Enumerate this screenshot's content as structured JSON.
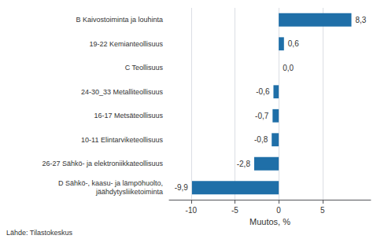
{
  "chart_data": {
    "type": "bar",
    "orientation": "horizontal",
    "categories": [
      "D Sähkö-, kaasu- ja lämpöhuolto,\njäähdytysliiketoiminta",
      "26-27 Sähkö- ja elektroniikkateollisuus",
      "10-11 Elintarviketeollisuus",
      "16-17 Metsäteollisuus",
      "24-30_33 Metalliteollisuus",
      "C Teollisuus",
      "19-22 Kemianteollisuus",
      "B Kaivostoiminta ja louhinta"
    ],
    "values": [
      -9.9,
      -2.8,
      -0.8,
      -0.7,
      -0.6,
      0.0,
      0.6,
      8.3
    ],
    "value_labels": [
      "-9,9",
      "-2,8",
      "-0,8",
      "-0,7",
      "-0,6",
      "0,0",
      "0,6",
      "8,3"
    ],
    "data_labels": true,
    "color": "#1f6fa8",
    "xlabel": "Muutos, %",
    "xlim": [
      -12.5,
      10.5
    ],
    "xticks": [
      -10,
      -5,
      0,
      5
    ],
    "grid": true,
    "annotations": [
      "Lähde: Tilastokeskus"
    ]
  }
}
